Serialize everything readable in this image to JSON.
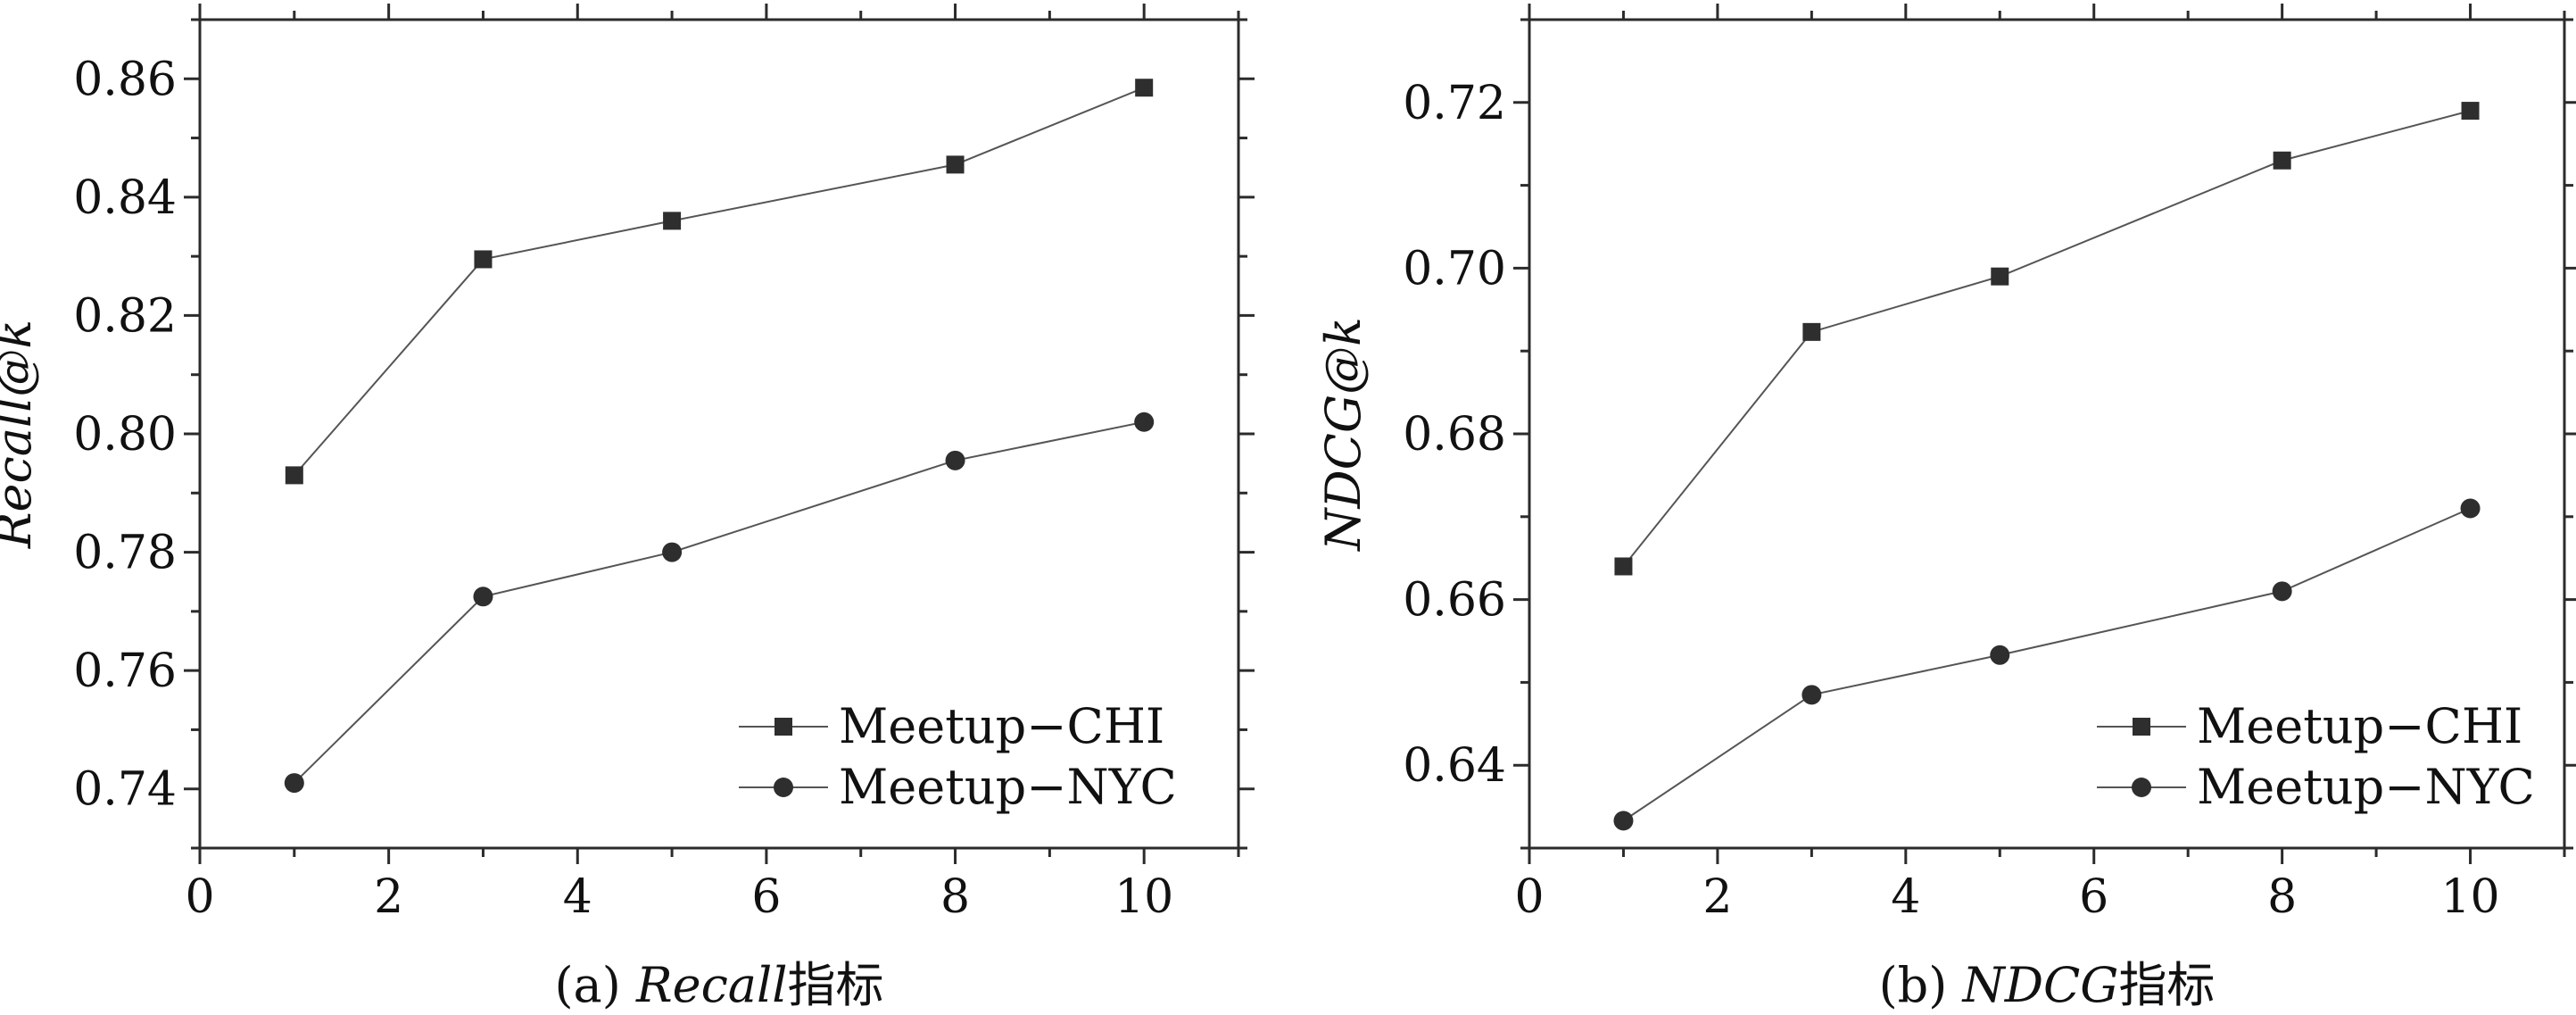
{
  "chart_data": [
    {
      "type": "line",
      "x": [
        1,
        3,
        5,
        8,
        10
      ],
      "xticks": [
        0,
        2,
        4,
        6,
        8,
        10
      ],
      "xlim": [
        0,
        11
      ],
      "ylim": [
        0.73,
        0.87
      ],
      "yticks": [
        0.74,
        0.76,
        0.78,
        0.8,
        0.82,
        0.84,
        0.86
      ],
      "ytick_labels": [
        "0.74",
        "0.76",
        "0.78",
        "0.80",
        "0.82",
        "0.84",
        "0.86"
      ],
      "ylabel": "Recall@k",
      "caption": {
        "prefix": "(a) ",
        "italic": "Recall",
        "suffix": "指标"
      },
      "legend_position": "bottom-right",
      "grid": false,
      "series": [
        {
          "name": "Meetup−CHI",
          "marker": "square",
          "values": [
            0.793,
            0.8295,
            0.836,
            0.8455,
            0.8585
          ]
        },
        {
          "name": "Meetup−NYC",
          "marker": "circle",
          "values": [
            0.741,
            0.7725,
            0.78,
            0.7955,
            0.802
          ]
        }
      ]
    },
    {
      "type": "line",
      "x": [
        1,
        3,
        5,
        8,
        10
      ],
      "xticks": [
        0,
        2,
        4,
        6,
        8,
        10
      ],
      "xlim": [
        0,
        11
      ],
      "ylim": [
        0.63,
        0.73
      ],
      "yticks": [
        0.64,
        0.66,
        0.68,
        0.7,
        0.72
      ],
      "ytick_labels": [
        "0.64",
        "0.66",
        "0.68",
        "0.70",
        "0.72"
      ],
      "ylabel": "NDCG@k",
      "caption": {
        "prefix": "(b) ",
        "italic": "NDCG",
        "suffix": "指标"
      },
      "legend_position": "bottom-right",
      "grid": false,
      "series": [
        {
          "name": "Meetup−CHI",
          "marker": "square",
          "values": [
            0.664,
            0.6923,
            0.699,
            0.713,
            0.719
          ]
        },
        {
          "name": "Meetup−NYC",
          "marker": "circle",
          "values": [
            0.6333,
            0.6485,
            0.6533,
            0.661,
            0.671
          ]
        }
      ]
    }
  ],
  "colors": {
    "ink": "#2b2b2b",
    "marker": "#2e2e2e",
    "line": "#555555"
  }
}
